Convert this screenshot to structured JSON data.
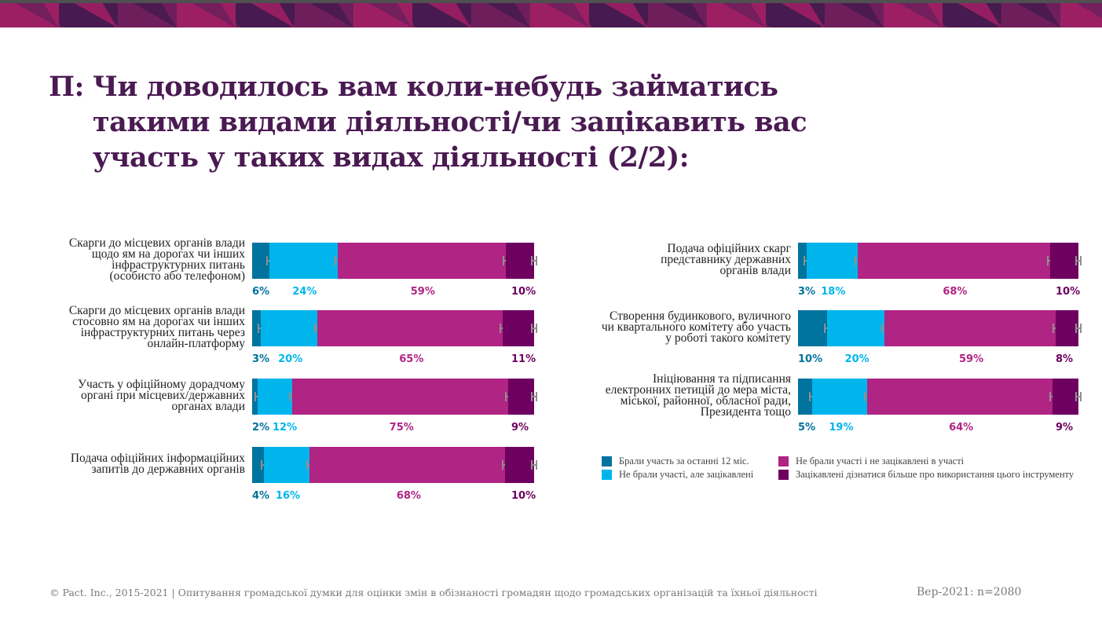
{
  "header": {
    "question_prefix": "П:",
    "title_lines": [
      "Чи доводилось вам коли-небудь займатись",
      "такими видами діяльності/чи зацікавить вас",
      "участь у таких видах діяльності  (2/2):"
    ]
  },
  "colors": {
    "banner": [
      "#9c1f63",
      "#6f1e5c",
      "#471a50"
    ],
    "title": "#4a1a52",
    "participated": "#00739e",
    "interested": "#00b5ec",
    "not_interested": "#b02484",
    "want_to_learn": "#6e0060"
  },
  "chart_data": {
    "type": "bar",
    "orientation": "horizontal",
    "stacked": true,
    "unit": "%",
    "xlim": [
      0,
      100
    ],
    "series_names": [
      "Брали участь за останні 12 міс.",
      "Не брали участі, але зацікавлені",
      "Не брали участі і не зацікавлені в участі",
      "Зацікавлені дізнатися більше про використання цього інструменту"
    ],
    "legend_position": "bottom-right",
    "error_bars": true,
    "panels": [
      {
        "position": "left",
        "rows": [
          {
            "label_lines": [
              "Скарги до місцевих органів влади",
              "щодо ям на дорогах чи інших",
              "інфраструктурних питань",
              "(особисто або телефоном)"
            ],
            "values": [
              6,
              24,
              59,
              10
            ],
            "labels": [
              "6%",
              "24%",
              "59%",
              "10%"
            ]
          },
          {
            "label_lines": [
              "Скарги до місцевих органів влади",
              "стосовно ям на дорогах чи інших",
              "інфраструктурних питань через",
              "онлайн-платформу"
            ],
            "values": [
              3,
              20,
              65,
              11
            ],
            "labels": [
              "3%",
              "20%",
              "65%",
              "11%"
            ]
          },
          {
            "label_lines": [
              "Участь у офіційному дорадчому",
              "органі при місцевих/державних",
              "органах влади"
            ],
            "values": [
              2,
              12,
              75,
              9
            ],
            "labels": [
              "2%",
              "12%",
              "75%",
              "9%"
            ]
          },
          {
            "label_lines": [
              "Подача офіційних інформаційних",
              "запитів до державних органів"
            ],
            "values": [
              4,
              16,
              68,
              10
            ],
            "labels": [
              "4%",
              "16%",
              "68%",
              "10%"
            ]
          }
        ]
      },
      {
        "position": "right",
        "rows": [
          {
            "label_lines": [
              "Подача офіційних скарг",
              "представнику державних",
              "органів влади"
            ],
            "values": [
              3,
              18,
              68,
              10
            ],
            "labels": [
              "3%",
              "18%",
              "68%",
              "10%"
            ]
          },
          {
            "label_lines": [
              "Створення будинкового, вуличного",
              "чи квартального комітету або участь",
              "у роботі такого комітету"
            ],
            "values": [
              10,
              20,
              59,
              8
            ],
            "labels": [
              "10%",
              "20%",
              "59%",
              "8%"
            ]
          },
          {
            "label_lines": [
              "Ініціювання та підписання",
              "електронних петицій до мера міста,",
              "міської, районної, обласної ради,",
              "Президента тощо"
            ],
            "values": [
              5,
              19,
              64,
              9
            ],
            "labels": [
              "5%",
              "19%",
              "64%",
              "9%"
            ]
          }
        ]
      }
    ]
  },
  "legend": {
    "items": [
      {
        "label": "Брали участь за останні 12 міс.",
        "color": "#00739e"
      },
      {
        "label": "Не брали участі, але зацікавлені",
        "color": "#00b5ec"
      },
      {
        "label": "Не брали участі і не зацікавлені в участі",
        "color": "#b02484"
      },
      {
        "label": "Зацікавлені дізнатися більше про використання цього інструменту",
        "color": "#6e0060"
      }
    ]
  },
  "footer": {
    "copyright": "© Pact. Inc., 2015-2021 | Опитування громадської думки для оцінки змін в обізнаності громадян щодо громадських організацій та їхньої діяльності",
    "sample": "Вер-2021: n=2080"
  }
}
